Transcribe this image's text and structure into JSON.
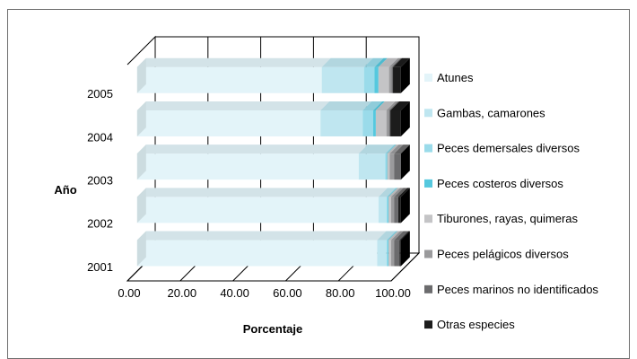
{
  "chart_data": {
    "type": "bar",
    "stacked": true,
    "orientation": "horizontal",
    "percent_stacked": true,
    "three_d": true,
    "categories": [
      "2001",
      "2002",
      "2003",
      "2004",
      "2005"
    ],
    "series": [
      {
        "name": "Atunes",
        "color": "#e3f4f9",
        "values": [
          91,
          91.5,
          84,
          69.5,
          70
        ]
      },
      {
        "name": "Gambas, camarones",
        "color": "#bfe6f0",
        "values": [
          3.5,
          3,
          10,
          16,
          16
        ]
      },
      {
        "name": "Peces demersales diversos",
        "color": "#9adbea",
        "values": [
          0.5,
          0.5,
          0.5,
          4,
          4
        ]
      },
      {
        "name": "Peces costeros diversos",
        "color": "#55c8de",
        "values": [
          0.3,
          0.3,
          0.3,
          1,
          1.5
        ]
      },
      {
        "name": "Tiburones, rayas, quimeras",
        "color": "#c4c4c6",
        "values": [
          1,
          1,
          1,
          4,
          4
        ]
      },
      {
        "name": "Peces pelágicos diversos",
        "color": "#9a9a9c",
        "values": [
          1.2,
          1.2,
          1.7,
          1,
          1
        ]
      },
      {
        "name": "Peces marinos no identificados",
        "color": "#6b6b6d",
        "values": [
          2,
          1.5,
          2.5,
          0.5,
          0.5
        ]
      },
      {
        "name": "Otras especies",
        "color": "#1c1c1c",
        "values": [
          0.5,
          1,
          0,
          4,
          3
        ]
      }
    ],
    "xlim": [
      0,
      100
    ],
    "xticks": [
      "0.00",
      "20.00",
      "40.00",
      "60.00",
      "80.00",
      "100.00"
    ],
    "xlabel": "Porcentaje",
    "ylabel": "Año",
    "grid": true,
    "legend_position": "right"
  }
}
